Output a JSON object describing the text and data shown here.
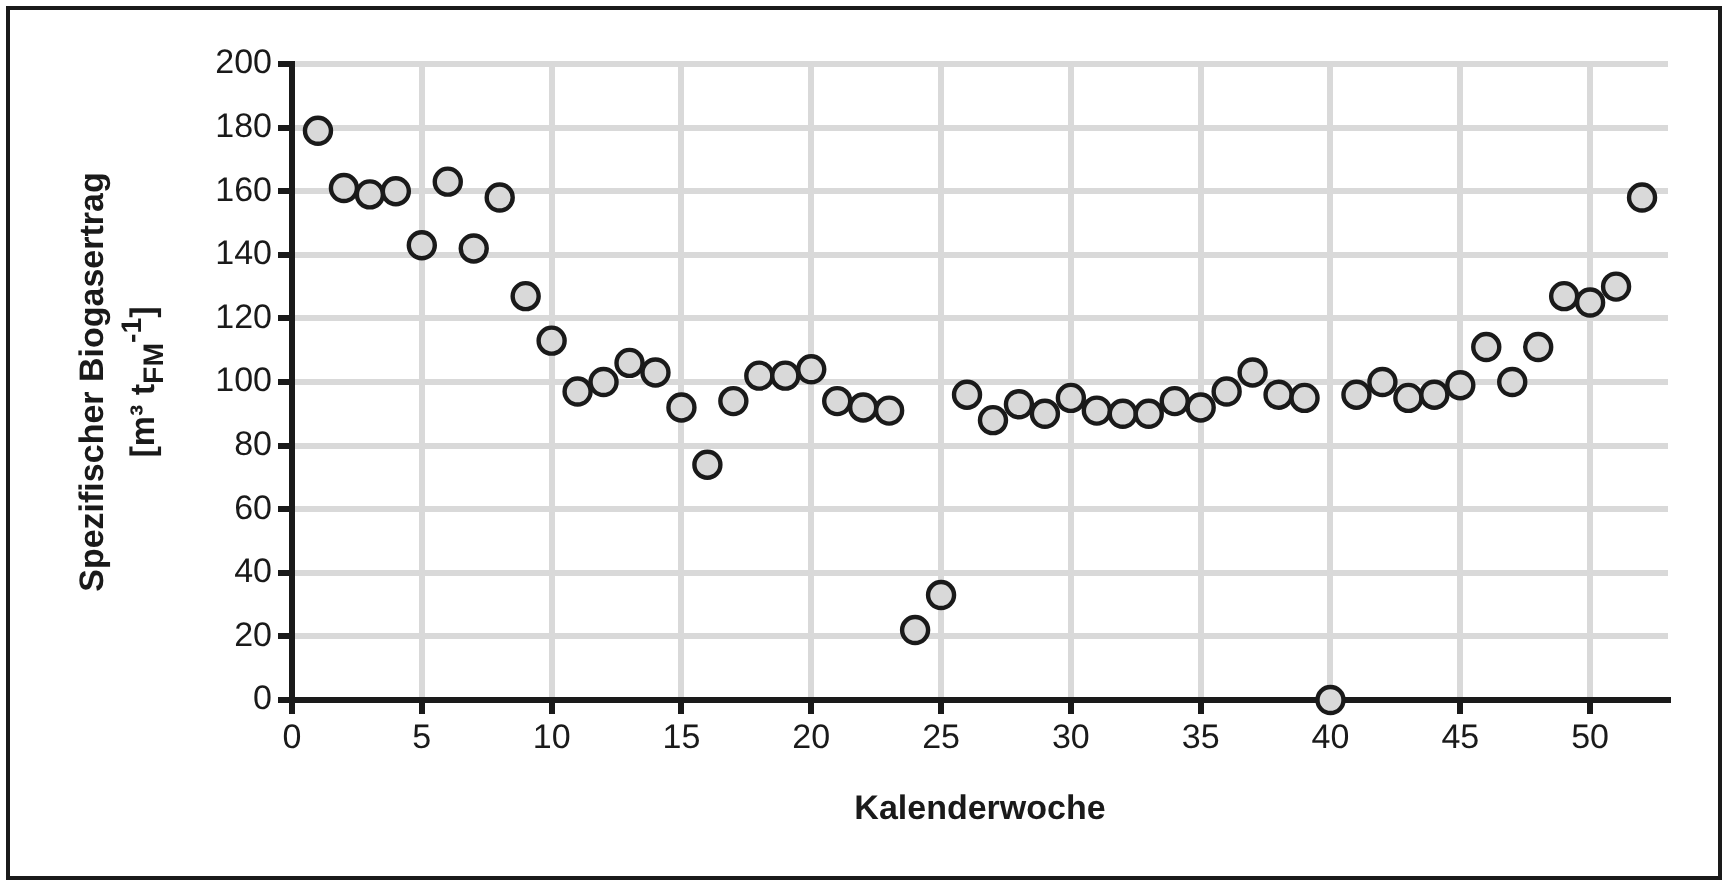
{
  "chart_data": {
    "type": "scatter",
    "xlabel": "Kalenderwoche",
    "ylabel": "Spezifischer Biogasertrag [m³ t$_{FM}$$^{-1}$]",
    "x": [
      1,
      2,
      3,
      4,
      5,
      6,
      7,
      8,
      9,
      10,
      11,
      12,
      13,
      14,
      15,
      16,
      17,
      18,
      19,
      20,
      21,
      22,
      23,
      24,
      25,
      26,
      27,
      28,
      29,
      30,
      31,
      32,
      33,
      34,
      35,
      36,
      37,
      38,
      39,
      40,
      41,
      42,
      43,
      44,
      45,
      46,
      47,
      48,
      49,
      50,
      51,
      52
    ],
    "series": [
      {
        "color": "#d9d9d9",
        "values": [
          179,
          161,
          159,
          160,
          143,
          163,
          142,
          158,
          127,
          113,
          97,
          100,
          106,
          103,
          92,
          74,
          94,
          102,
          102,
          104,
          94,
          92,
          91,
          22,
          33,
          96,
          88,
          93,
          90,
          95,
          91,
          90,
          90,
          94,
          92,
          97,
          103,
          96,
          95,
          0,
          96,
          100,
          95,
          96,
          99,
          111,
          100,
          111,
          127,
          125,
          130,
          158
        ]
      }
    ],
    "xlim": [
      0,
      53
    ],
    "xticks": [
      0,
      5,
      10,
      15,
      20,
      25,
      30,
      35,
      40,
      45,
      50
    ],
    "ylim": [
      0,
      200
    ],
    "yticks": [
      0,
      20,
      40,
      60,
      80,
      100,
      120,
      140,
      160,
      180,
      200
    ],
    "grid": true,
    "marker": "circle"
  }
}
